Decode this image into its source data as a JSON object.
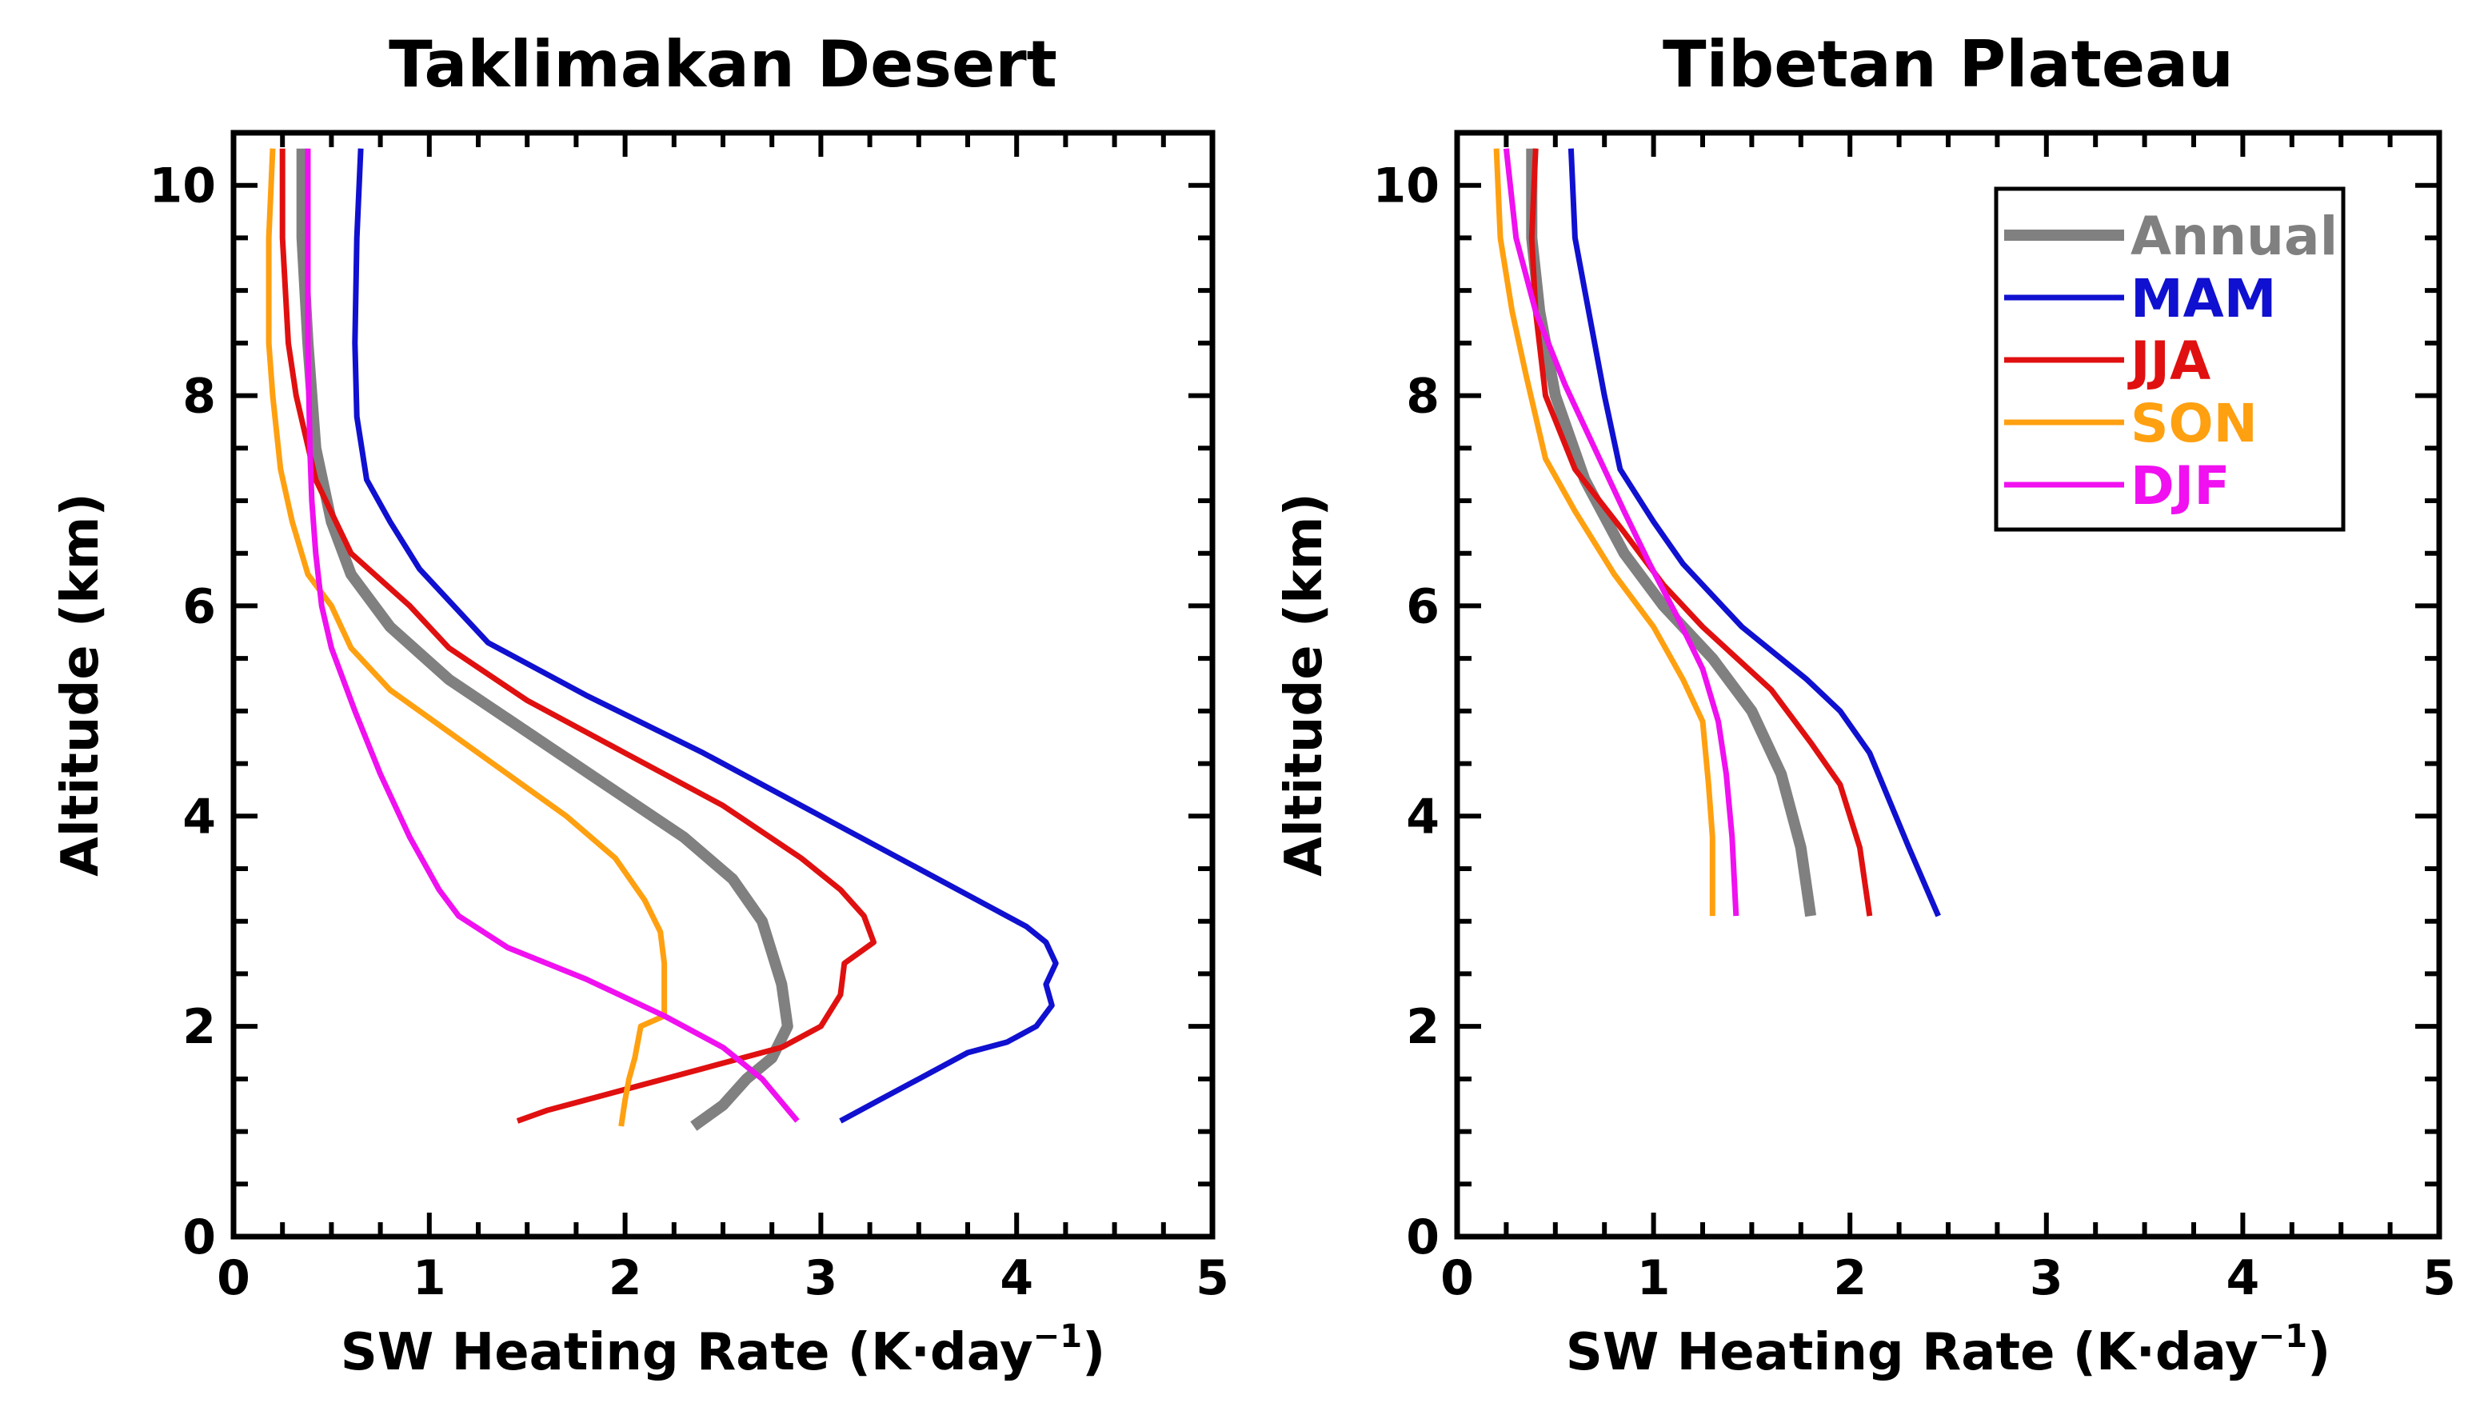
{
  "chart_data": [
    {
      "type": "line",
      "title": "Taklimakan Desert",
      "xlabel": "SW Heating Rate (K·day",
      "xlabel_sup": "−1",
      "xlabel_close": ")",
      "ylabel": "Altitude (km)",
      "xlim": [
        0,
        5
      ],
      "ylim": [
        0,
        10.5
      ],
      "xticks": [
        0,
        1,
        2,
        3,
        4,
        5
      ],
      "xtick_labels": [
        "0",
        "1",
        "2",
        "3",
        "4",
        "5"
      ],
      "yticks": [
        0,
        2,
        4,
        6,
        8,
        10
      ],
      "ytick_labels": [
        "0",
        "2",
        "4",
        "6",
        "8",
        "10"
      ],
      "legend": false,
      "series": [
        {
          "name": "Annual",
          "color": "#808080",
          "width": 14,
          "points": [
            [
              0.35,
              10.35
            ],
            [
              0.35,
              9.5
            ],
            [
              0.38,
              8.5
            ],
            [
              0.42,
              7.5
            ],
            [
              0.5,
              6.8
            ],
            [
              0.6,
              6.3
            ],
            [
              0.8,
              5.8
            ],
            [
              1.1,
              5.3
            ],
            [
              1.5,
              4.8
            ],
            [
              1.9,
              4.3
            ],
            [
              2.3,
              3.8
            ],
            [
              2.55,
              3.4
            ],
            [
              2.7,
              3.0
            ],
            [
              2.75,
              2.7
            ],
            [
              2.8,
              2.4
            ],
            [
              2.83,
              2.0
            ],
            [
              2.75,
              1.7
            ],
            [
              2.62,
              1.5
            ],
            [
              2.5,
              1.25
            ],
            [
              2.35,
              1.05
            ]
          ]
        },
        {
          "name": "MAM",
          "color": "#1010d0",
          "width": 7,
          "points": [
            [
              0.65,
              10.35
            ],
            [
              0.63,
              9.5
            ],
            [
              0.62,
              8.5
            ],
            [
              0.63,
              7.8
            ],
            [
              0.68,
              7.2
            ],
            [
              0.8,
              6.8
            ],
            [
              0.95,
              6.35
            ],
            [
              1.3,
              5.65
            ],
            [
              1.8,
              5.15
            ],
            [
              2.4,
              4.6
            ],
            [
              3.0,
              4.0
            ],
            [
              3.5,
              3.5
            ],
            [
              3.9,
              3.1
            ],
            [
              4.05,
              2.95
            ],
            [
              4.15,
              2.8
            ],
            [
              4.2,
              2.6
            ],
            [
              4.15,
              2.4
            ],
            [
              4.18,
              2.2
            ],
            [
              4.1,
              2.0
            ],
            [
              3.95,
              1.85
            ],
            [
              3.75,
              1.75
            ],
            [
              3.5,
              1.5
            ],
            [
              3.3,
              1.3
            ],
            [
              3.1,
              1.1
            ]
          ]
        },
        {
          "name": "JJA",
          "color": "#e01010",
          "width": 7,
          "points": [
            [
              0.25,
              10.35
            ],
            [
              0.25,
              9.5
            ],
            [
              0.28,
              8.5
            ],
            [
              0.32,
              8.0
            ],
            [
              0.42,
              7.2
            ],
            [
              0.6,
              6.5
            ],
            [
              0.9,
              6.0
            ],
            [
              1.1,
              5.6
            ],
            [
              1.5,
              5.1
            ],
            [
              2.0,
              4.6
            ],
            [
              2.5,
              4.1
            ],
            [
              2.9,
              3.6
            ],
            [
              3.1,
              3.3
            ],
            [
              3.22,
              3.05
            ],
            [
              3.27,
              2.8
            ],
            [
              3.12,
              2.6
            ],
            [
              3.1,
              2.3
            ],
            [
              3.0,
              2.0
            ],
            [
              2.8,
              1.8
            ],
            [
              2.4,
              1.6
            ],
            [
              2.0,
              1.4
            ],
            [
              1.6,
              1.2
            ],
            [
              1.45,
              1.1
            ]
          ]
        },
        {
          "name": "SON",
          "color": "#ffa010",
          "width": 7,
          "points": [
            [
              0.2,
              10.35
            ],
            [
              0.18,
              9.5
            ],
            [
              0.18,
              8.5
            ],
            [
              0.2,
              8.0
            ],
            [
              0.24,
              7.3
            ],
            [
              0.3,
              6.8
            ],
            [
              0.38,
              6.3
            ],
            [
              0.5,
              6.0
            ],
            [
              0.6,
              5.6
            ],
            [
              0.8,
              5.2
            ],
            [
              1.1,
              4.8
            ],
            [
              1.4,
              4.4
            ],
            [
              1.7,
              4.0
            ],
            [
              1.95,
              3.6
            ],
            [
              2.1,
              3.2
            ],
            [
              2.18,
              2.9
            ],
            [
              2.2,
              2.6
            ],
            [
              2.2,
              2.1
            ],
            [
              2.08,
              2.0
            ],
            [
              2.05,
              1.7
            ],
            [
              2.02,
              1.5
            ],
            [
              2.0,
              1.3
            ],
            [
              1.98,
              1.05
            ]
          ]
        },
        {
          "name": "DJF",
          "color": "#f010f0",
          "width": 7,
          "points": [
            [
              0.38,
              10.35
            ],
            [
              0.38,
              9.5
            ],
            [
              0.38,
              8.5
            ],
            [
              0.39,
              7.5
            ],
            [
              0.4,
              7.0
            ],
            [
              0.42,
              6.5
            ],
            [
              0.45,
              6.0
            ],
            [
              0.5,
              5.6
            ],
            [
              0.62,
              5.0
            ],
            [
              0.75,
              4.4
            ],
            [
              0.9,
              3.8
            ],
            [
              1.05,
              3.3
            ],
            [
              1.15,
              3.05
            ],
            [
              1.4,
              2.75
            ],
            [
              1.8,
              2.45
            ],
            [
              2.2,
              2.1
            ],
            [
              2.5,
              1.8
            ],
            [
              2.7,
              1.5
            ],
            [
              2.88,
              1.1
            ]
          ]
        }
      ]
    },
    {
      "type": "line",
      "title": "Tibetan Plateau",
      "xlabel": "SW Heating Rate (K·day",
      "xlabel_sup": "−1",
      "xlabel_close": ")",
      "ylabel": "Altitude (km)",
      "xlim": [
        0,
        5
      ],
      "ylim": [
        0,
        10.5
      ],
      "xticks": [
        0,
        1,
        2,
        3,
        4,
        5
      ],
      "xtick_labels": [
        "0",
        "1",
        "2",
        "3",
        "4",
        "5"
      ],
      "yticks": [
        0,
        2,
        4,
        6,
        8,
        10
      ],
      "ytick_labels": [
        "0",
        "2",
        "4",
        "6",
        "8",
        "10"
      ],
      "legend": true,
      "legend_position": "top-right",
      "series": [
        {
          "name": "Annual",
          "color": "#808080",
          "width": 14,
          "points": [
            [
              0.38,
              10.35
            ],
            [
              0.38,
              9.5
            ],
            [
              0.42,
              8.8
            ],
            [
              0.5,
              8.0
            ],
            [
              0.65,
              7.2
            ],
            [
              0.85,
              6.5
            ],
            [
              1.05,
              6.0
            ],
            [
              1.3,
              5.5
            ],
            [
              1.5,
              5.0
            ],
            [
              1.65,
              4.4
            ],
            [
              1.75,
              3.7
            ],
            [
              1.8,
              3.05
            ]
          ]
        },
        {
          "name": "MAM",
          "color": "#1010d0",
          "width": 7,
          "points": [
            [
              0.58,
              10.35
            ],
            [
              0.6,
              9.5
            ],
            [
              0.65,
              9.0
            ],
            [
              0.75,
              8.0
            ],
            [
              0.83,
              7.3
            ],
            [
              1.0,
              6.8
            ],
            [
              1.15,
              6.4
            ],
            [
              1.45,
              5.8
            ],
            [
              1.78,
              5.3
            ],
            [
              1.95,
              5.0
            ],
            [
              2.1,
              4.6
            ],
            [
              2.3,
              3.7
            ],
            [
              2.45,
              3.05
            ]
          ]
        },
        {
          "name": "JJA",
          "color": "#e01010",
          "width": 7,
          "points": [
            [
              0.4,
              10.35
            ],
            [
              0.38,
              9.5
            ],
            [
              0.4,
              8.8
            ],
            [
              0.45,
              8.0
            ],
            [
              0.6,
              7.3
            ],
            [
              0.85,
              6.7
            ],
            [
              1.05,
              6.2
            ],
            [
              1.25,
              5.8
            ],
            [
              1.6,
              5.2
            ],
            [
              1.8,
              4.7
            ],
            [
              1.95,
              4.3
            ],
            [
              2.05,
              3.7
            ],
            [
              2.1,
              3.05
            ]
          ]
        },
        {
          "name": "SON",
          "color": "#ffa010",
          "width": 7,
          "points": [
            [
              0.2,
              10.35
            ],
            [
              0.22,
              9.5
            ],
            [
              0.28,
              8.8
            ],
            [
              0.35,
              8.2
            ],
            [
              0.45,
              7.4
            ],
            [
              0.6,
              6.9
            ],
            [
              0.8,
              6.3
            ],
            [
              1.0,
              5.8
            ],
            [
              1.15,
              5.3
            ],
            [
              1.25,
              4.9
            ],
            [
              1.28,
              4.3
            ],
            [
              1.3,
              3.8
            ],
            [
              1.3,
              3.05
            ]
          ]
        },
        {
          "name": "DJF",
          "color": "#f010f0",
          "width": 7,
          "points": [
            [
              0.25,
              10.35
            ],
            [
              0.3,
              9.5
            ],
            [
              0.4,
              8.8
            ],
            [
              0.55,
              8.1
            ],
            [
              0.7,
              7.5
            ],
            [
              0.85,
              6.9
            ],
            [
              0.98,
              6.4
            ],
            [
              1.12,
              5.9
            ],
            [
              1.25,
              5.4
            ],
            [
              1.33,
              4.9
            ],
            [
              1.37,
              4.4
            ],
            [
              1.4,
              3.8
            ],
            [
              1.42,
              3.05
            ]
          ]
        }
      ]
    }
  ]
}
